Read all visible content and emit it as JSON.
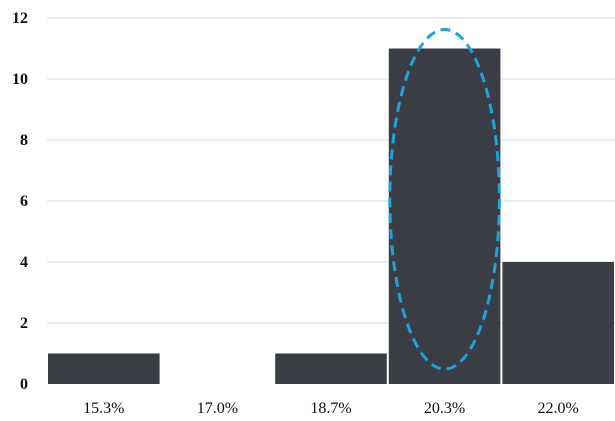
{
  "chart_data": {
    "type": "bar",
    "categories": [
      "15.3%",
      "17.0%",
      "18.7%",
      "20.3%",
      "22.0%"
    ],
    "values": [
      1,
      0,
      1,
      11,
      4
    ],
    "ylim": [
      0,
      12
    ],
    "yticks": [
      "0",
      "2",
      "4",
      "6",
      "8",
      "10",
      "12"
    ],
    "grid": true,
    "title": "",
    "xlabel": "",
    "ylabel": "",
    "highlighted_category": "20.3%",
    "colors": {
      "bar": "#3a3d44",
      "grid": "#d9d9d9",
      "highlight": "#1aa3e0"
    }
  }
}
